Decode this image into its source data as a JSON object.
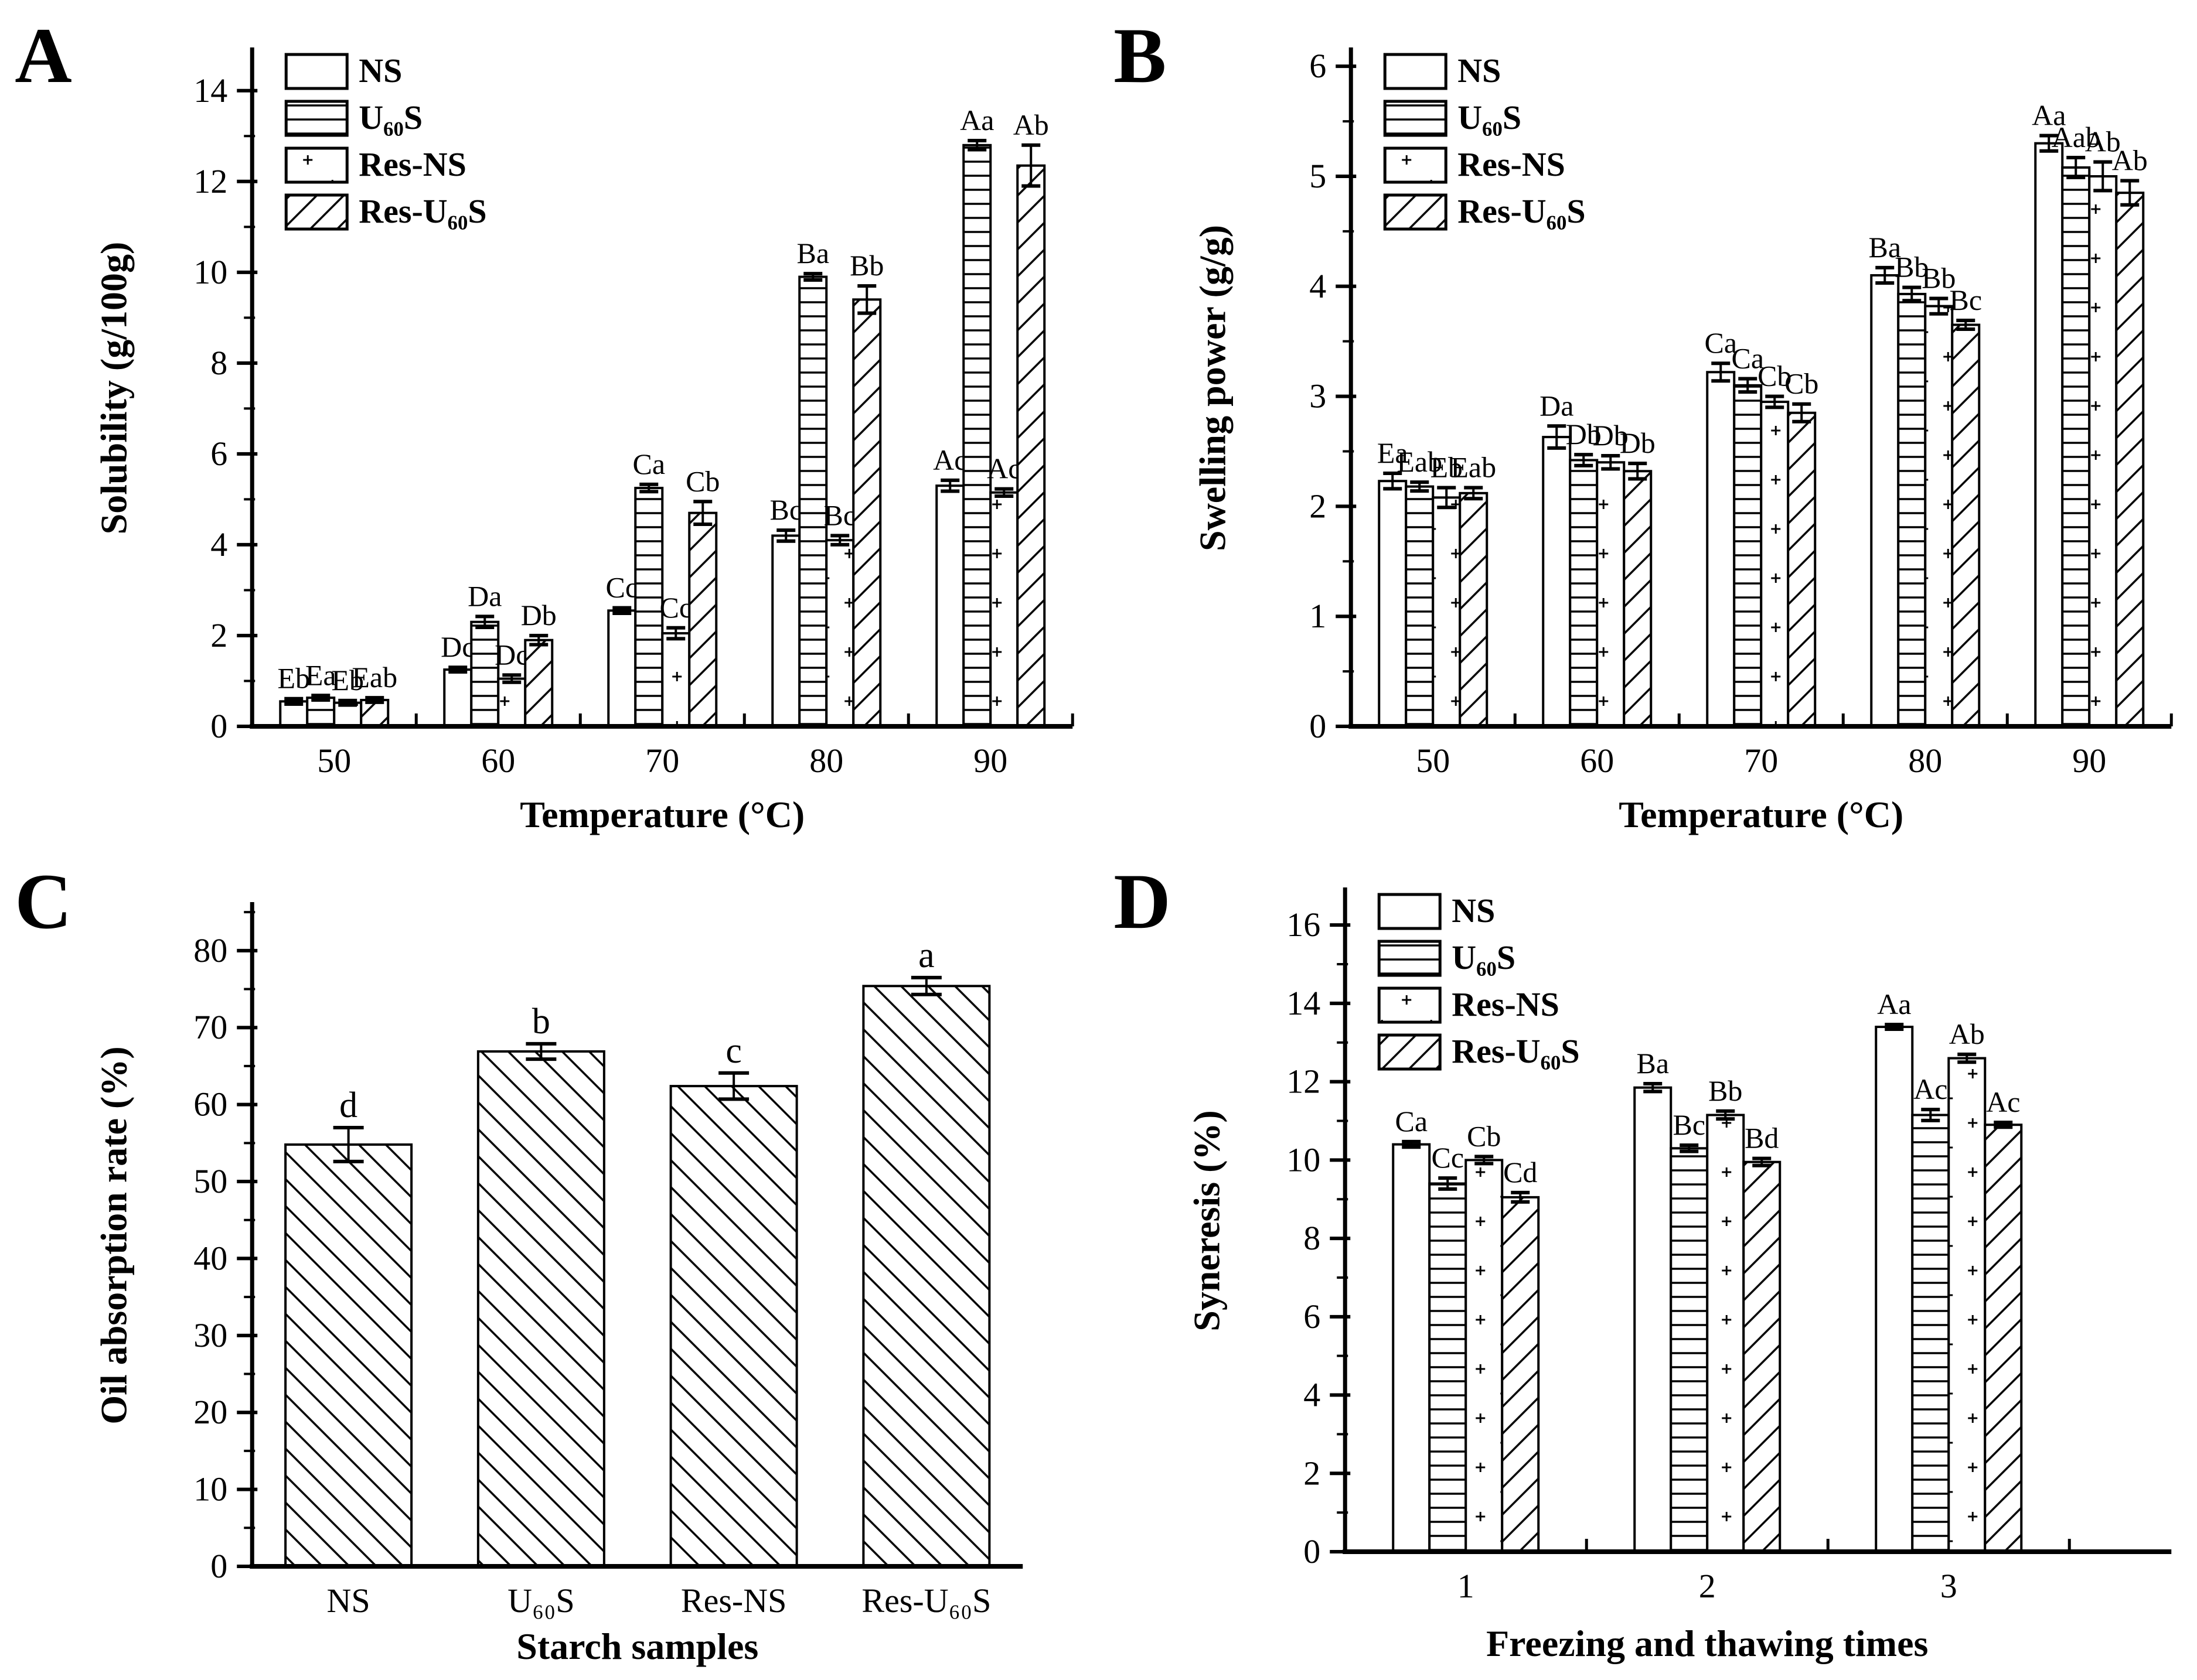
{
  "figure": {
    "background_color": "#ffffff",
    "ink_color": "#000000",
    "description": "Four-panel bar chart figure (A, B, C, D) of starch sample properties"
  },
  "chart_data": [
    {
      "letter": "A",
      "type": "bar",
      "xlabel": "Temperature (°C)",
      "ylabel": "Solubility (g/100g)",
      "categories": [
        "50",
        "60",
        "70",
        "80",
        "90"
      ],
      "ylim": [
        0,
        14.9
      ],
      "yticks": [
        0,
        2,
        4,
        6,
        8,
        10,
        12,
        14
      ],
      "ytick_minor": 1,
      "grid": false,
      "legend": true,
      "legend_position": "top-left-inside",
      "series": [
        {
          "name": "NS",
          "pattern": "plain",
          "values": [
            0.55,
            1.25,
            2.55,
            4.2,
            5.3
          ],
          "errors": [
            0.06,
            0.05,
            0.06,
            0.12,
            0.12
          ],
          "sig_labels": [
            "Eb",
            "Dc",
            "Cc",
            "Bc",
            "Ac"
          ]
        },
        {
          "name": "U₆₀S",
          "pattern": "hlines",
          "values": [
            0.63,
            2.3,
            5.25,
            9.9,
            12.8
          ],
          "errors": [
            0.05,
            0.12,
            0.08,
            0.07,
            0.1
          ],
          "sig_labels": [
            "Ea",
            "Da",
            "Ca",
            "Ba",
            "Aa"
          ]
        },
        {
          "name": "Res-NS",
          "pattern": "dots",
          "values": [
            0.52,
            1.05,
            2.05,
            4.1,
            5.15
          ],
          "errors": [
            0.05,
            0.08,
            0.12,
            0.1,
            0.08
          ],
          "sig_labels": [
            "Eb",
            "Dc",
            "Cc",
            "Bc",
            "Ac"
          ]
        },
        {
          "name": "Res-U₆₀S",
          "pattern": "diag-up",
          "values": [
            0.58,
            1.9,
            4.7,
            9.4,
            12.35
          ],
          "errors": [
            0.05,
            0.1,
            0.25,
            0.3,
            0.45
          ],
          "sig_labels": [
            "Eab",
            "Db",
            "Cb",
            "Bb",
            "Ab"
          ]
        }
      ]
    },
    {
      "letter": "B",
      "type": "bar",
      "xlabel": "Temperature (°C)",
      "ylabel": "Swelling power (g/g)",
      "categories": [
        "50",
        "60",
        "70",
        "80",
        "90"
      ],
      "ylim": [
        0,
        6.15
      ],
      "yticks": [
        0,
        1,
        2,
        3,
        4,
        5,
        6
      ],
      "ytick_minor": 0.5,
      "grid": false,
      "legend": true,
      "legend_position": "top-left-inside",
      "series": [
        {
          "name": "NS",
          "pattern": "plain",
          "values": [
            2.23,
            2.63,
            3.22,
            4.1,
            5.3
          ],
          "errors": [
            0.07,
            0.1,
            0.08,
            0.07,
            0.07
          ],
          "sig_labels": [
            "Ea",
            "Da",
            "Ca",
            "Ba",
            "Aa"
          ]
        },
        {
          "name": "U₆₀S",
          "pattern": "hlines",
          "values": [
            2.18,
            2.42,
            3.1,
            3.93,
            5.08
          ],
          "errors": [
            0.04,
            0.05,
            0.06,
            0.06,
            0.09
          ],
          "sig_labels": [
            "Eab",
            "Db",
            "Ca",
            "Bb",
            "Aab"
          ]
        },
        {
          "name": "Res-NS",
          "pattern": "dots",
          "values": [
            2.08,
            2.4,
            2.95,
            3.82,
            5.0
          ],
          "errors": [
            0.09,
            0.06,
            0.05,
            0.07,
            0.13
          ],
          "sig_labels": [
            "Eb",
            "Db",
            "Cb",
            "Bb",
            "Ab"
          ]
        },
        {
          "name": "Res-U₆₀S",
          "pattern": "diag-up",
          "values": [
            2.12,
            2.32,
            2.85,
            3.65,
            4.85
          ],
          "errors": [
            0.05,
            0.07,
            0.08,
            0.04,
            0.11
          ],
          "sig_labels": [
            "Eab",
            "Db",
            "Cb",
            "Bc",
            "Ab"
          ]
        }
      ]
    },
    {
      "letter": "C",
      "type": "bar",
      "xlabel": "Starch samples",
      "ylabel": "Oil absorption rate (%)",
      "categories": [
        "NS",
        "U₆₀S",
        "Res-NS",
        "Res-U₆₀S"
      ],
      "ylim": [
        0,
        86
      ],
      "yticks": [
        0,
        10,
        20,
        30,
        40,
        50,
        60,
        70,
        80
      ],
      "ytick_minor": 5,
      "grid": false,
      "legend": false,
      "legend_position": "none",
      "series": [
        {
          "name": "",
          "pattern": "diag-down",
          "values": [
            54.8,
            66.9,
            62.4,
            75.4
          ],
          "errors": [
            2.2,
            1.0,
            1.7,
            1.1
          ],
          "sig_labels": [
            "d",
            "b",
            "c",
            "a"
          ]
        }
      ]
    },
    {
      "letter": "D",
      "type": "bar",
      "xlabel": "Freezing and thawing times",
      "ylabel": "Syneresis (%)",
      "categories": [
        "1",
        "2",
        "3"
      ],
      "ylim": [
        0,
        16.9
      ],
      "yticks": [
        0,
        2,
        4,
        6,
        8,
        10,
        12,
        14,
        16
      ],
      "ytick_minor": 1,
      "grid": false,
      "legend": true,
      "legend_position": "top-left-inside",
      "series": [
        {
          "name": "NS",
          "pattern": "plain",
          "values": [
            10.4,
            11.85,
            13.4
          ],
          "errors": [
            0.07,
            0.1,
            0.06
          ],
          "sig_labels": [
            "Ca",
            "Ba",
            "Aa"
          ]
        },
        {
          "name": "U₆₀S",
          "pattern": "hlines",
          "values": [
            9.4,
            10.3,
            11.15
          ],
          "errors": [
            0.14,
            0.08,
            0.14
          ],
          "sig_labels": [
            "Cc",
            "Bc",
            "Ac"
          ]
        },
        {
          "name": "Res-NS",
          "pattern": "dots",
          "values": [
            10.0,
            11.15,
            12.6
          ],
          "errors": [
            0.09,
            0.1,
            0.1
          ],
          "sig_labels": [
            "Cb",
            "Bb",
            "Ab"
          ]
        },
        {
          "name": "Res-U₆₀S",
          "pattern": "diag-up",
          "values": [
            9.05,
            9.95,
            10.9
          ],
          "errors": [
            0.12,
            0.09,
            0.06
          ],
          "sig_labels": [
            "Cd",
            "Bd",
            "Ac"
          ]
        }
      ]
    }
  ]
}
